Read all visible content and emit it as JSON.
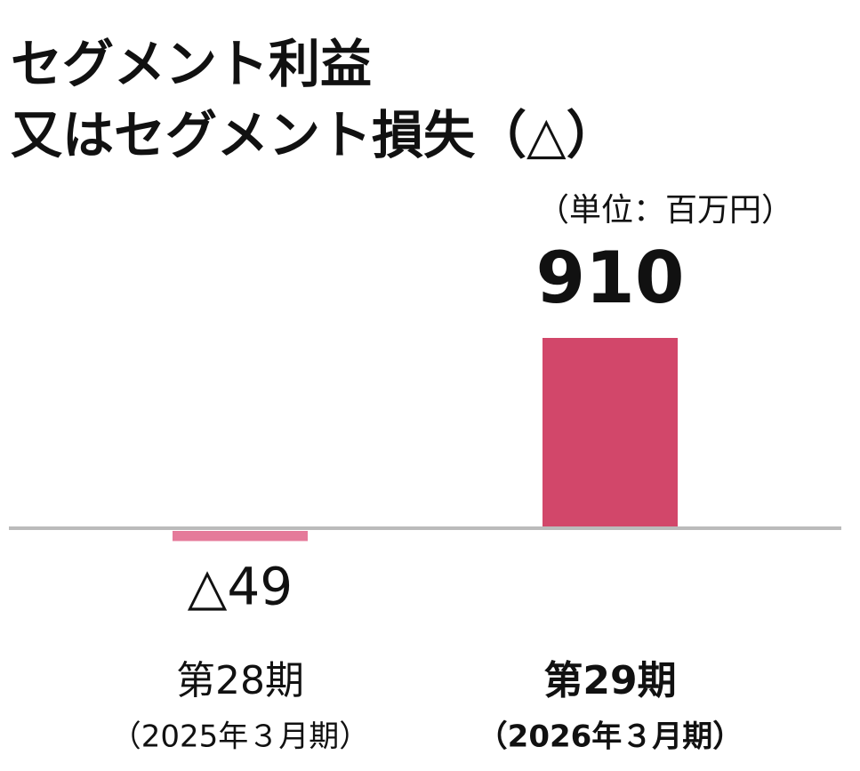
{
  "chart_data": {
    "type": "bar",
    "title": [
      "セグメント利益",
      "又はセグメント損失（△）"
    ],
    "unit": "（単位：百万円）",
    "categories": [
      "第28期",
      "第29期"
    ],
    "subcategories": [
      "（2025年３月期）",
      "（2026年３月期）"
    ],
    "values": [
      -49,
      910
    ],
    "value_labels": [
      "△49",
      "910"
    ],
    "colors": [
      "#e57a9a",
      "#d2476a"
    ]
  }
}
